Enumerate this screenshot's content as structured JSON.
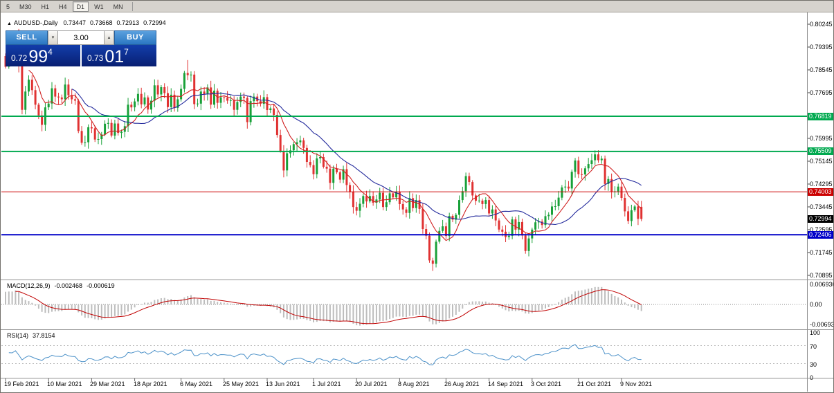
{
  "colors": {
    "up": "#18a038",
    "down": "#e03232",
    "ma_fast": "#d02020",
    "ma_slow": "#232a9c",
    "macd_hist": "#bdbdbd",
    "macd_signal": "#c00000",
    "rsi_line": "#4a90c8",
    "tag_black": "#000000",
    "panel_blue": "#0b2f9c",
    "button_blue": "#2b77c2"
  },
  "toolbar": {
    "items": [
      {
        "label": "5",
        "active": false
      },
      {
        "label": "M30",
        "active": false
      },
      {
        "label": "H1",
        "active": false
      },
      {
        "label": "H4",
        "active": false
      },
      {
        "label": "D1",
        "active": true
      },
      {
        "label": "W1",
        "active": false
      },
      {
        "label": "MN",
        "active": false
      }
    ]
  },
  "header": {
    "direction_icon": "▲",
    "symbol": "AUDUSD-,Daily",
    "open": "0.73447",
    "high": "0.73668",
    "low": "0.72913",
    "close": "0.72994"
  },
  "trade": {
    "sell_label": "SELL",
    "buy_label": "BUY",
    "volume": "3.00",
    "volume_down_icon": "▾",
    "volume_up_icon": "▴",
    "sell_price": {
      "prefix": "0.72",
      "big": "99",
      "sup": "4"
    },
    "buy_price": {
      "prefix": "0.73",
      "big": "01",
      "sup": "7"
    }
  },
  "main_axis": {
    "labels": [
      "0.80245",
      "0.79395",
      "0.78545",
      "0.77695",
      "0.76845",
      "0.75995",
      "0.75145",
      "0.74295",
      "0.73445",
      "0.72595",
      "0.71745",
      "0.70895"
    ]
  },
  "levels": [
    {
      "value": "0.76819",
      "color": "#00a94f",
      "line_width": 2
    },
    {
      "value": "0.75509",
      "color": "#00a94f",
      "line_width": 2
    },
    {
      "value": "0.74003",
      "color": "#cc0000",
      "line_width": 1
    },
    {
      "value": "0.72406",
      "color": "#0000c8",
      "line_width": 2
    }
  ],
  "current_price_tag": {
    "value": "0.72994",
    "color": "#000000"
  },
  "macd": {
    "name": "MACD(12,26,9)",
    "main_value": "-0.002468",
    "signal_value": "-0.000619",
    "axis": [
      "0.006936",
      "0.00",
      "-0.006936"
    ]
  },
  "rsi": {
    "name": "RSI(14)",
    "value": "37.8154",
    "axis": [
      "100",
      "70",
      "30",
      "0"
    ],
    "levels": [
      70,
      30
    ]
  },
  "time_axis": [
    {
      "label": "19 Feb 2021",
      "i": 0
    },
    {
      "label": "10 Mar 2021",
      "i": 13
    },
    {
      "label": "29 Mar 2021",
      "i": 26
    },
    {
      "label": "18 Apr 2021",
      "i": 39
    },
    {
      "label": "6 May 2021",
      "i": 53
    },
    {
      "label": "25 May 2021",
      "i": 66
    },
    {
      "label": "13 Jun 2021",
      "i": 79
    },
    {
      "label": "1 Jul 2021",
      "i": 93
    },
    {
      "label": "20 Jul 2021",
      "i": 106
    },
    {
      "label": "8 Aug 2021",
      "i": 119
    },
    {
      "label": "26 Aug 2021",
      "i": 133
    },
    {
      "label": "14 Sep 2021",
      "i": 146
    },
    {
      "label": "3 Oct 2021",
      "i": 159
    },
    {
      "label": "21 Oct 2021",
      "i": 173
    },
    {
      "label": "9 Nov 2021",
      "i": 186
    }
  ],
  "chart_data": {
    "type": "candlestick",
    "symbol": "AUDUSD",
    "timeframe": "Daily",
    "ylim": [
      0.70895,
      0.80245
    ],
    "closes": [
      0.7866,
      0.7915,
      0.791,
      0.7968,
      0.787,
      0.7706,
      0.7774,
      0.7818,
      0.7779,
      0.7725,
      0.7685,
      0.765,
      0.7715,
      0.7729,
      0.7786,
      0.7755,
      0.7752,
      0.7745,
      0.78,
      0.776,
      0.7745,
      0.774,
      0.7627,
      0.7583,
      0.7585,
      0.7641,
      0.7637,
      0.7595,
      0.7597,
      0.7614,
      0.7654,
      0.7657,
      0.761,
      0.7655,
      0.762,
      0.7624,
      0.7645,
      0.7725,
      0.7715,
      0.7737,
      0.7765,
      0.7726,
      0.7752,
      0.7707,
      0.774,
      0.7797,
      0.7763,
      0.779,
      0.7768,
      0.7716,
      0.7762,
      0.7713,
      0.7745,
      0.7784,
      0.7843,
      0.7835,
      0.7837,
      0.7727,
      0.7729,
      0.7774,
      0.7764,
      0.7789,
      0.7725,
      0.7777,
      0.7732,
      0.7752,
      0.775,
      0.774,
      0.7742,
      0.7706,
      0.7735,
      0.7755,
      0.775,
      0.766,
      0.7738,
      0.7755,
      0.7738,
      0.7728,
      0.7753,
      0.7705,
      0.7711,
      0.7687,
      0.7612,
      0.7553,
      0.748,
      0.7544,
      0.7555,
      0.7578,
      0.7585,
      0.7592,
      0.7564,
      0.7512,
      0.75,
      0.7466,
      0.7525,
      0.753,
      0.7494,
      0.7487,
      0.7434,
      0.7487,
      0.7473,
      0.7446,
      0.7485,
      0.7426,
      0.7401,
      0.7344,
      0.733,
      0.7356,
      0.7385,
      0.7365,
      0.7385,
      0.736,
      0.7372,
      0.7397,
      0.7344,
      0.7362,
      0.7395,
      0.738,
      0.74,
      0.7355,
      0.7335,
      0.7322,
      0.7377,
      0.734,
      0.737,
      0.7337,
      0.7262,
      0.7237,
      0.7145,
      0.7133,
      0.7215,
      0.7255,
      0.7272,
      0.7236,
      0.7311,
      0.7297,
      0.7315,
      0.737,
      0.7403,
      0.7459,
      0.7437,
      0.7387,
      0.7367,
      0.7368,
      0.7355,
      0.737,
      0.732,
      0.7335,
      0.7294,
      0.726,
      0.7252,
      0.7232,
      0.7237,
      0.7298,
      0.726,
      0.7288,
      0.7238,
      0.718,
      0.7227,
      0.726,
      0.7287,
      0.729,
      0.7277,
      0.731,
      0.7315,
      0.7346,
      0.7347,
      0.7379,
      0.7417,
      0.742,
      0.7413,
      0.7475,
      0.7517,
      0.7466,
      0.7465,
      0.7488,
      0.7504,
      0.7518,
      0.754,
      0.7518,
      0.7524,
      0.743,
      0.7448,
      0.74,
      0.7402,
      0.742,
      0.7378,
      0.7328,
      0.7292,
      0.7332,
      0.7346,
      0.73,
      0.72994
    ],
    "overrides": {
      "4": {
        "h": 0.8007
      },
      "55": {
        "h": 0.7891
      },
      "129": {
        "l": 0.7106
      },
      "157": {
        "l": 0.717
      },
      "178": {
        "h": 0.7555
      },
      "192": {
        "o": 0.73447,
        "h": 0.73668,
        "l": 0.72913,
        "c": 0.72994
      }
    }
  }
}
